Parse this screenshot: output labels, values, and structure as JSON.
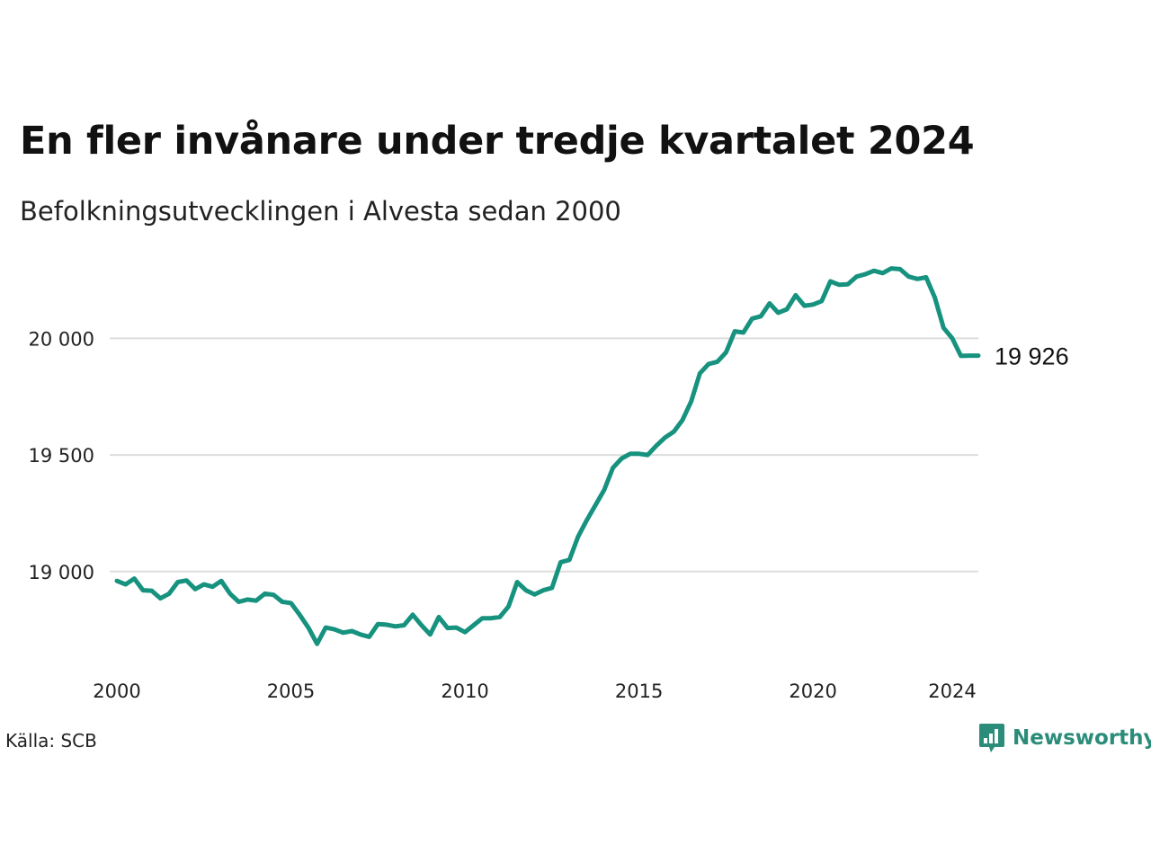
{
  "title": "En fler invånare under tredje kvartalet 2024",
  "subtitle": "Befolkningsutvecklingen i Alvesta sedan 2000",
  "source": "Källa: SCB",
  "brand": {
    "name": "Newsworthy",
    "icon": "newsworthy-logo-icon",
    "color": "#2a8c79"
  },
  "chart_data": {
    "type": "line",
    "color": "#16927f",
    "grid": true,
    "x_range": [
      2000.0,
      2024.75
    ],
    "y_range": [
      18660,
      20310
    ],
    "x_ticks": [
      {
        "value": 2000,
        "label": "2000"
      },
      {
        "value": 2005,
        "label": "2005"
      },
      {
        "value": 2010,
        "label": "2010"
      },
      {
        "value": 2015,
        "label": "2015"
      },
      {
        "value": 2020,
        "label": "2020"
      },
      {
        "value": 2024,
        "label": "2024"
      }
    ],
    "y_ticks": [
      {
        "value": 19000,
        "label": "19 000"
      },
      {
        "value": 19500,
        "label": "19 500"
      },
      {
        "value": 20000,
        "label": "20 000"
      }
    ],
    "end_label": "19 926",
    "x": [
      2000.0,
      2000.25,
      2000.5,
      2000.75,
      2001.0,
      2001.25,
      2001.5,
      2001.75,
      2002.0,
      2002.25,
      2002.5,
      2002.75,
      2003.0,
      2003.25,
      2003.5,
      2003.75,
      2004.0,
      2004.25,
      2004.5,
      2004.75,
      2005.0,
      2005.25,
      2005.5,
      2005.75,
      2006.0,
      2006.25,
      2006.5,
      2006.75,
      2007.0,
      2007.25,
      2007.5,
      2007.75,
      2008.0,
      2008.25,
      2008.5,
      2008.75,
      2009.0,
      2009.25,
      2009.5,
      2009.75,
      2010.0,
      2010.25,
      2010.5,
      2010.75,
      2011.0,
      2011.25,
      2011.5,
      2011.75,
      2012.0,
      2012.25,
      2012.5,
      2012.75,
      2013.0,
      2013.25,
      2013.5,
      2013.75,
      2014.0,
      2014.25,
      2014.5,
      2014.75,
      2015.0,
      2015.25,
      2015.5,
      2015.75,
      2016.0,
      2016.25,
      2016.5,
      2016.75,
      2017.0,
      2017.25,
      2017.5,
      2017.75,
      2018.0,
      2018.25,
      2018.5,
      2018.75,
      2019.0,
      2019.25,
      2019.5,
      2019.75,
      2020.0,
      2020.25,
      2020.5,
      2020.75,
      2021.0,
      2021.25,
      2021.5,
      2021.75,
      2022.0,
      2022.25,
      2022.5,
      2022.75,
      2023.0,
      2023.25,
      2023.5,
      2023.75,
      2024.0,
      2024.25,
      2024.5,
      2024.75
    ],
    "y": [
      18960,
      18945,
      18970,
      18920,
      18918,
      18885,
      18905,
      18955,
      18962,
      18925,
      18945,
      18935,
      18960,
      18905,
      18870,
      18880,
      18875,
      18905,
      18900,
      18870,
      18865,
      18815,
      18760,
      18690,
      18760,
      18752,
      18738,
      18745,
      18730,
      18720,
      18775,
      18772,
      18765,
      18770,
      18815,
      18770,
      18730,
      18805,
      18758,
      18760,
      18740,
      18770,
      18800,
      18800,
      18805,
      18850,
      18955,
      18920,
      18902,
      18920,
      18930,
      19040,
      19050,
      19150,
      19220,
      19285,
      19350,
      19445,
      19485,
      19505,
      19505,
      19500,
      19540,
      19575,
      19600,
      19650,
      19730,
      19850,
      19890,
      19900,
      19940,
      20030,
      20025,
      20085,
      20095,
      20150,
      20110,
      20125,
      20185,
      20140,
      20145,
      20160,
      20245,
      20230,
      20232,
      20265,
      20275,
      20290,
      20280,
      20300,
      20297,
      20265,
      20255,
      20262,
      20175,
      20045,
      20000,
      19925,
      19926,
      19926
    ]
  }
}
